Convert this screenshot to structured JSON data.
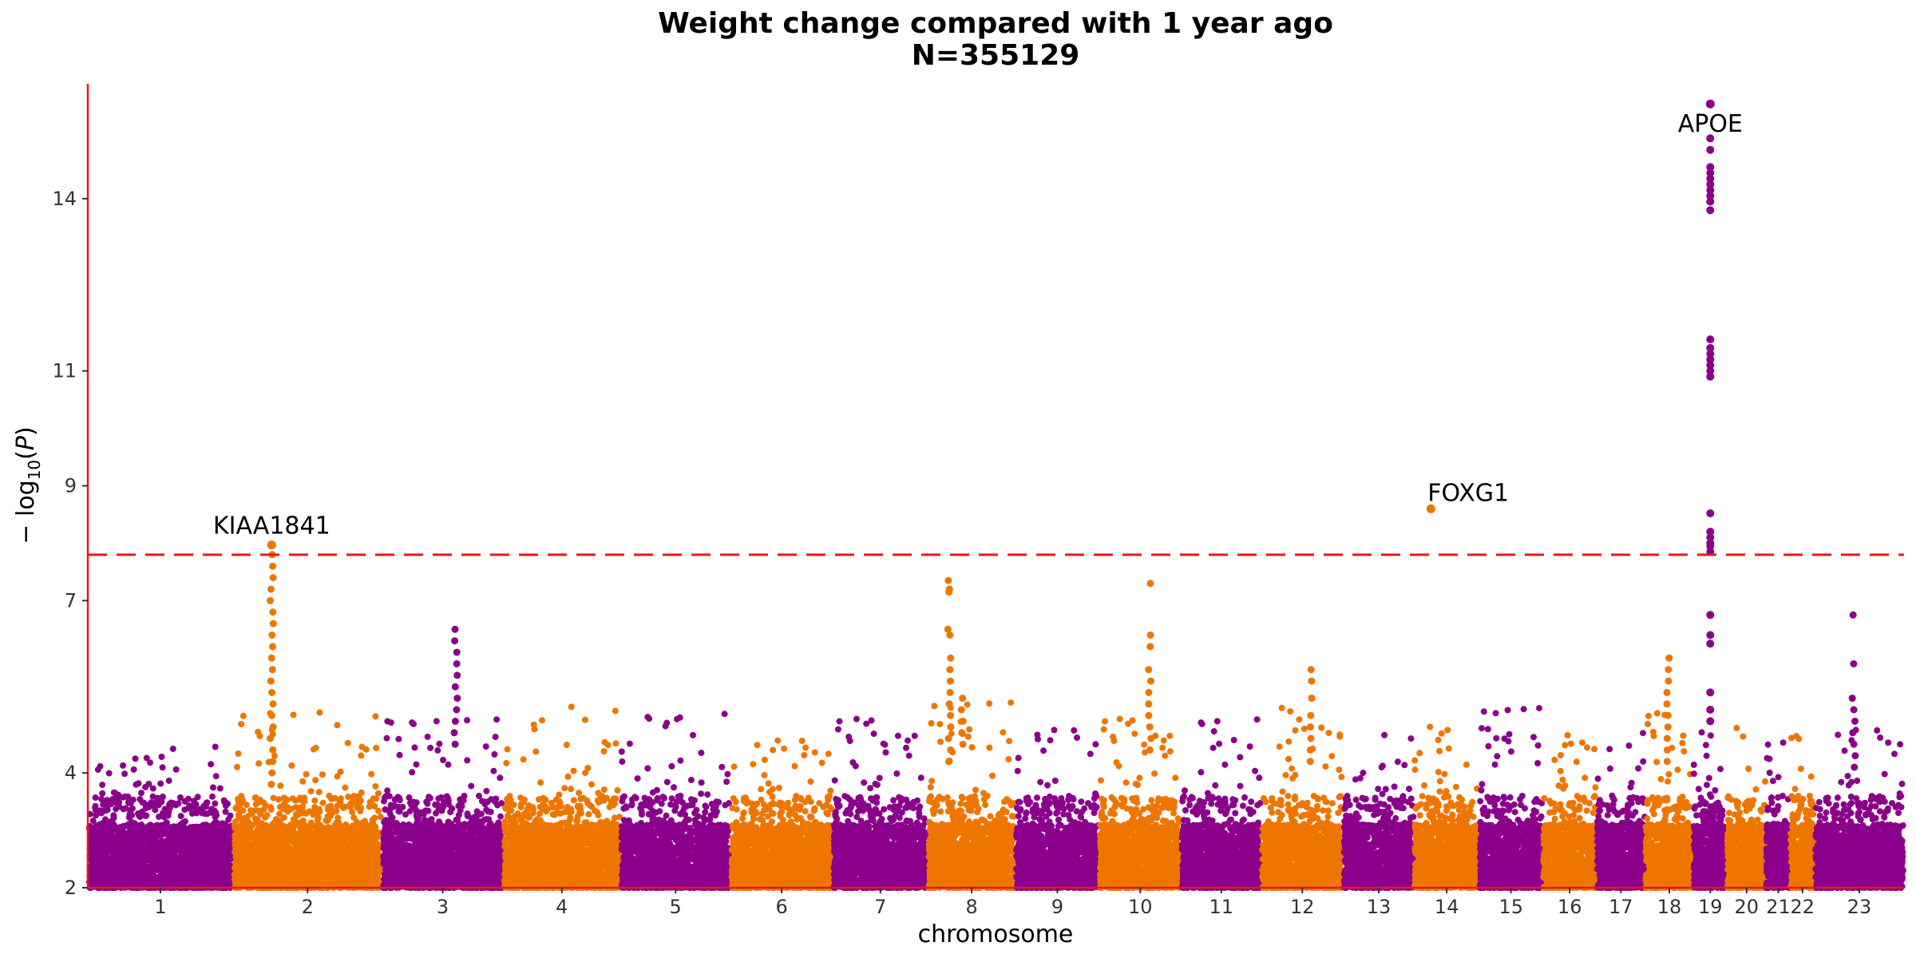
{
  "chart_data": {
    "type": "scatter",
    "title": [
      "Weight change compared with 1 year ago",
      "N=355129"
    ],
    "xlabel": "chromosome",
    "ylabel": "-log10(P)",
    "ylim": [
      2,
      16
    ],
    "y_ticks": [
      2,
      4,
      7,
      9,
      11,
      14
    ],
    "significance_threshold": 7.8,
    "colors": {
      "odd": "#8B008B",
      "even": "#EE7600",
      "axis": "#E31A1C",
      "threshold": "#E31A1C"
    },
    "chromosomes": [
      "1",
      "2",
      "3",
      "4",
      "5",
      "6",
      "7",
      "8",
      "9",
      "10",
      "11",
      "12",
      "13",
      "14",
      "15",
      "16",
      "17",
      "18",
      "19",
      "20",
      "21",
      "22",
      "23"
    ],
    "chromosome_extents": [
      [
        0.0,
        0.78
      ],
      [
        0.78,
        1.58
      ],
      [
        1.58,
        2.23
      ],
      [
        2.23,
        2.86
      ],
      [
        2.86,
        3.45
      ],
      [
        3.45,
        4.0
      ],
      [
        4.0,
        4.51
      ],
      [
        4.51,
        4.98
      ],
      [
        4.98,
        5.43
      ],
      [
        5.43,
        5.87
      ],
      [
        5.87,
        6.3
      ],
      [
        6.3,
        6.74
      ],
      [
        6.74,
        7.12
      ],
      [
        7.12,
        7.47
      ],
      [
        7.47,
        7.81
      ],
      [
        7.81,
        8.1
      ],
      [
        8.1,
        8.36
      ],
      [
        8.36,
        8.62
      ],
      [
        8.62,
        8.8
      ],
      [
        8.8,
        9.01
      ],
      [
        9.01,
        9.14
      ],
      [
        9.14,
        9.27
      ],
      [
        9.27,
        9.75
      ]
    ],
    "max_background": [
      4.5,
      5.1,
      5.0,
      5.2,
      5.1,
      4.8,
      5.0,
      5.3,
      5.0,
      5.0,
      5.0,
      5.2,
      4.7,
      4.9,
      5.2,
      4.9,
      4.8,
      5.1,
      4.8,
      4.9,
      4.6,
      4.7,
      5.0
    ],
    "peaks": [
      {
        "chr": "2",
        "pos": 0.987,
        "values": [
          7.97,
          7.8,
          7.6,
          7.4,
          7.2,
          7.0,
          6.8,
          6.6,
          6.4,
          6.2,
          6.0,
          5.8,
          5.6,
          5.4,
          5.2,
          5.0,
          4.8,
          4.6,
          4.4,
          4.2,
          4.0,
          3.8
        ]
      },
      {
        "chr": "3",
        "pos": 1.975,
        "values": [
          6.5,
          6.3,
          6.1,
          5.9,
          5.7,
          5.5,
          5.3,
          5.1,
          4.9,
          4.7,
          4.5
        ]
      },
      {
        "chr": "8",
        "pos": 4.625,
        "values": [
          7.35,
          7.2,
          7.15,
          6.5,
          6.4,
          6.0,
          5.8,
          5.6,
          5.4,
          5.2,
          5.0,
          4.8,
          4.6,
          4.4,
          4.2
        ]
      },
      {
        "chr": "8",
        "pos": 4.695,
        "values": [
          5.3,
          5.1,
          4.9,
          4.7,
          4.5
        ]
      },
      {
        "chr": "10",
        "pos": 5.7,
        "values": [
          7.3,
          6.4,
          6.2,
          5.8,
          5.6,
          5.4,
          5.2,
          5.0,
          4.8,
          4.6,
          4.4
        ]
      },
      {
        "chr": "12",
        "pos": 6.57,
        "values": [
          5.8,
          5.6,
          5.3,
          5.0,
          4.8,
          4.6,
          4.4,
          4.2
        ]
      },
      {
        "chr": "18",
        "pos": 8.48,
        "values": [
          6.0,
          5.8,
          5.6,
          5.4,
          5.2,
          5.0,
          4.8,
          4.6,
          4.4,
          4.2
        ]
      },
      {
        "chr": "23",
        "pos": 9.48,
        "values": [
          6.75,
          5.9,
          5.3,
          5.1,
          4.9,
          4.7,
          4.5,
          4.3,
          4.1
        ]
      }
    ],
    "apoe_column": {
      "pos": 8.71,
      "values": [
        15.65,
        15.05,
        14.85,
        14.55,
        14.45,
        14.35,
        14.25,
        14.15,
        14.05,
        13.95,
        13.8,
        11.55,
        11.4,
        11.3,
        11.2,
        11.1,
        11.0,
        10.9,
        8.52,
        8.2,
        8.1,
        8.0,
        7.95,
        7.85,
        6.75,
        6.4,
        6.25,
        5.4,
        5.1,
        4.9
      ]
    },
    "annotations": [
      {
        "label": "KIAA1841",
        "chr": "2",
        "pos": 0.987,
        "value": 7.97
      },
      {
        "label": "FOXG1",
        "chr": "14",
        "pos": 7.21,
        "value": 8.6
      },
      {
        "label": "APOE",
        "chr": "19",
        "pos": 8.71,
        "value": 15.65
      }
    ]
  }
}
